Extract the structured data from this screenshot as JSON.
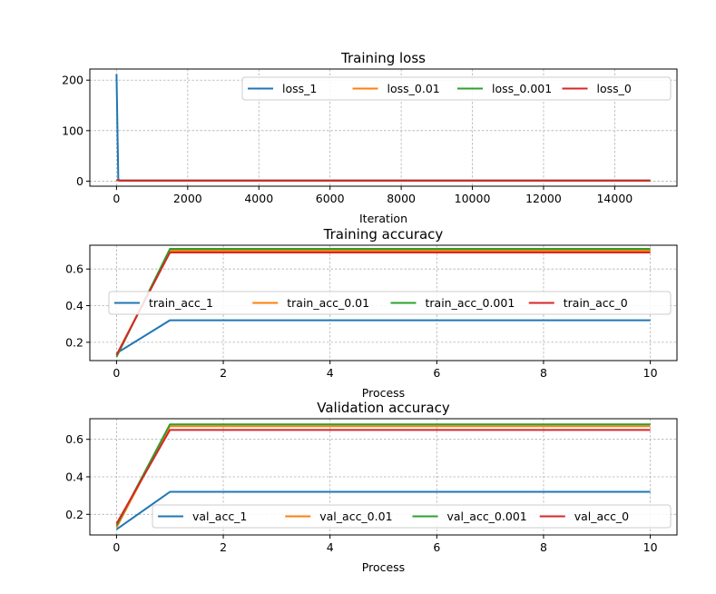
{
  "colors": [
    "#1f77b4",
    "#ff7f0e",
    "#2ca02c",
    "#d62728"
  ],
  "chart_data": [
    {
      "type": "line",
      "title": "Training loss",
      "xlabel": "Iteration",
      "ylabel": "",
      "xlim": [
        -750,
        15750
      ],
      "ylim": [
        -10,
        222
      ],
      "xticks": [
        0,
        2000,
        4000,
        6000,
        8000,
        10000,
        12000,
        14000
      ],
      "yticks": [
        0,
        100,
        200
      ],
      "grid": true,
      "legend": {
        "placement": "top-right",
        "columns": 4
      },
      "series": [
        {
          "name": "loss_1",
          "x": [
            0,
            50,
            100,
            15000
          ],
          "y": [
            212,
            3,
            1.5,
            1.5
          ]
        },
        {
          "name": "loss_0.01",
          "x": [
            0,
            100,
            15000
          ],
          "y": [
            2.2,
            1.0,
            1.0
          ]
        },
        {
          "name": "loss_0.001",
          "x": [
            0,
            100,
            15000
          ],
          "y": [
            2.2,
            0.9,
            0.9
          ]
        },
        {
          "name": "loss_0",
          "x": [
            0,
            100,
            15000
          ],
          "y": [
            2.2,
            1.0,
            1.0
          ]
        }
      ]
    },
    {
      "type": "line",
      "title": "Training accuracy",
      "xlabel": "Process",
      "ylabel": "",
      "xlim": [
        -0.5,
        10.5
      ],
      "ylim": [
        0.1,
        0.73
      ],
      "xticks": [
        0,
        2,
        4,
        6,
        8,
        10
      ],
      "yticks": [
        0.2,
        0.4,
        0.6
      ],
      "grid": true,
      "legend": {
        "placement": "center-right",
        "columns": 4
      },
      "series": [
        {
          "name": "train_acc_1",
          "x": [
            0,
            1,
            10
          ],
          "y": [
            0.14,
            0.32,
            0.32
          ]
        },
        {
          "name": "train_acc_0.01",
          "x": [
            0,
            1,
            10
          ],
          "y": [
            0.13,
            0.7,
            0.7
          ]
        },
        {
          "name": "train_acc_0.001",
          "x": [
            0,
            1,
            10
          ],
          "y": [
            0.12,
            0.71,
            0.71
          ]
        },
        {
          "name": "train_acc_0",
          "x": [
            0,
            1,
            10
          ],
          "y": [
            0.13,
            0.69,
            0.69
          ]
        }
      ]
    },
    {
      "type": "line",
      "title": "Validation accuracy",
      "xlabel": "Process",
      "ylabel": "",
      "xlim": [
        -0.5,
        10.5
      ],
      "ylim": [
        0.09,
        0.71
      ],
      "xticks": [
        0,
        2,
        4,
        6,
        8,
        10
      ],
      "yticks": [
        0.2,
        0.4,
        0.6
      ],
      "grid": true,
      "legend": {
        "placement": "lower-right",
        "columns": 4
      },
      "series": [
        {
          "name": "val_acc_1",
          "x": [
            0,
            1,
            10
          ],
          "y": [
            0.12,
            0.32,
            0.32
          ]
        },
        {
          "name": "val_acc_0.01",
          "x": [
            0,
            1,
            10
          ],
          "y": [
            0.13,
            0.67,
            0.67
          ]
        },
        {
          "name": "val_acc_0.001",
          "x": [
            0,
            1,
            10
          ],
          "y": [
            0.14,
            0.68,
            0.68
          ]
        },
        {
          "name": "val_acc_0",
          "x": [
            0,
            1,
            10
          ],
          "y": [
            0.15,
            0.65,
            0.65
          ]
        }
      ]
    }
  ]
}
